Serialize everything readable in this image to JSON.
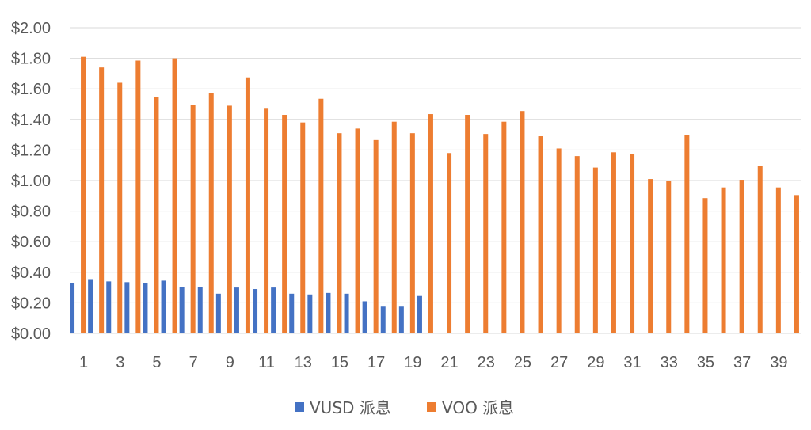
{
  "chart_data": {
    "type": "bar",
    "title": "",
    "xlabel": "",
    "ylabel": "",
    "ylim": [
      0,
      2.0
    ],
    "y_tick_step": 0.2,
    "y_tick_labels": [
      "$0.00",
      "$0.20",
      "$0.40",
      "$0.60",
      "$0.80",
      "$1.00",
      "$1.20",
      "$1.40",
      "$1.60",
      "$1.80",
      "$2.00"
    ],
    "grid": true,
    "legend_position": "bottom",
    "categories": [
      "1",
      "2",
      "3",
      "4",
      "5",
      "6",
      "7",
      "8",
      "9",
      "10",
      "11",
      "12",
      "13",
      "14",
      "15",
      "16",
      "17",
      "18",
      "19",
      "20",
      "21",
      "22",
      "23",
      "24",
      "25",
      "26",
      "27",
      "28",
      "29",
      "30",
      "31",
      "32",
      "33",
      "34",
      "35",
      "36",
      "37",
      "38",
      "39",
      "40"
    ],
    "x_tick_labels": [
      "1",
      "",
      "3",
      "",
      "5",
      "",
      "7",
      "",
      "9",
      "",
      "11",
      "",
      "13",
      "",
      "15",
      "",
      "17",
      "",
      "19",
      "",
      "21",
      "",
      "23",
      "",
      "25",
      "",
      "27",
      "",
      "29",
      "",
      "31",
      "",
      "33",
      "",
      "35",
      "",
      "37",
      "",
      "39",
      ""
    ],
    "series": [
      {
        "name": "VUSD 派息",
        "color": "#4472c4",
        "values": [
          0.33,
          0.355,
          0.34,
          0.335,
          0.33,
          0.345,
          0.305,
          0.305,
          0.26,
          0.3,
          0.29,
          0.3,
          0.26,
          0.255,
          0.265,
          0.26,
          0.21,
          0.175,
          0.175,
          0.245,
          null,
          null,
          null,
          null,
          null,
          null,
          null,
          null,
          null,
          null,
          null,
          null,
          null,
          null,
          null,
          null,
          null,
          null,
          null,
          null
        ]
      },
      {
        "name": "VOO 派息",
        "color": "#ed7d31",
        "values": [
          1.81,
          1.74,
          1.64,
          1.785,
          1.545,
          1.8,
          1.495,
          1.575,
          1.49,
          1.675,
          1.47,
          1.43,
          1.38,
          1.535,
          1.31,
          1.34,
          1.265,
          1.385,
          1.31,
          1.435,
          1.18,
          1.43,
          1.305,
          1.385,
          1.455,
          1.29,
          1.21,
          1.16,
          1.085,
          1.185,
          1.175,
          1.01,
          0.995,
          1.3,
          0.885,
          0.955,
          1.005,
          1.095,
          0.955,
          0.905
        ]
      }
    ]
  }
}
